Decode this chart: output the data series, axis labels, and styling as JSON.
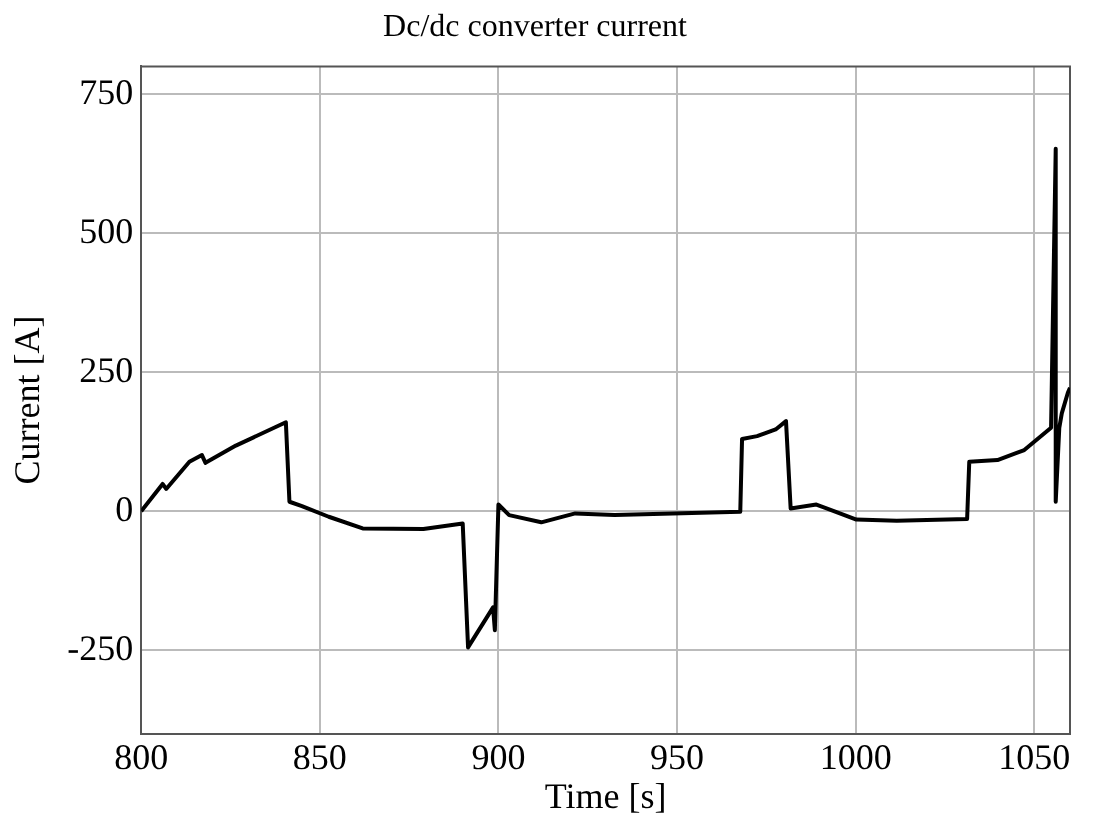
{
  "chart_data": {
    "type": "line",
    "title": "Dc/dc converter current",
    "xlabel": "Time [s]",
    "ylabel": "Current [A]",
    "xlim": [
      800,
      1060
    ],
    "xticks": [
      800,
      850,
      900,
      950,
      1000,
      1050
    ],
    "ylim": [
      -400,
      800
    ],
    "yticks": [
      -250,
      0,
      250,
      500,
      750
    ],
    "grid": true,
    "legend": false,
    "marker": "none",
    "line_style": "solid",
    "series": [
      {
        "color": "#000000",
        "x": [
          800,
          806,
          807,
          813.5,
          817,
          818,
          826.5,
          840.5,
          841.5,
          845,
          852.5,
          862,
          879,
          890,
          891.5,
          898.5,
          899,
          900,
          903,
          912,
          921.5,
          932.5,
          967.7,
          968.2,
          972.4,
          977.6,
          980.5,
          981.8,
          989,
          1000.2,
          1011.5,
          1031.2,
          1031.8,
          1039.7,
          1047.2,
          1054.7,
          1056,
          1056,
          1057,
          1057.7,
          1059.4,
          1060
        ],
        "values": [
          0,
          49,
          40,
          89,
          101,
          87,
          118,
          160,
          17,
          9,
          -10,
          -31,
          -32,
          -22,
          -245,
          -173,
          -214,
          12,
          -7,
          -20,
          -4,
          -7,
          -1,
          130,
          135,
          147,
          162,
          5,
          12,
          -15,
          -17,
          -14,
          89,
          92,
          110,
          150,
          652,
          17,
          150,
          176,
          213,
          222
        ]
      }
    ]
  }
}
